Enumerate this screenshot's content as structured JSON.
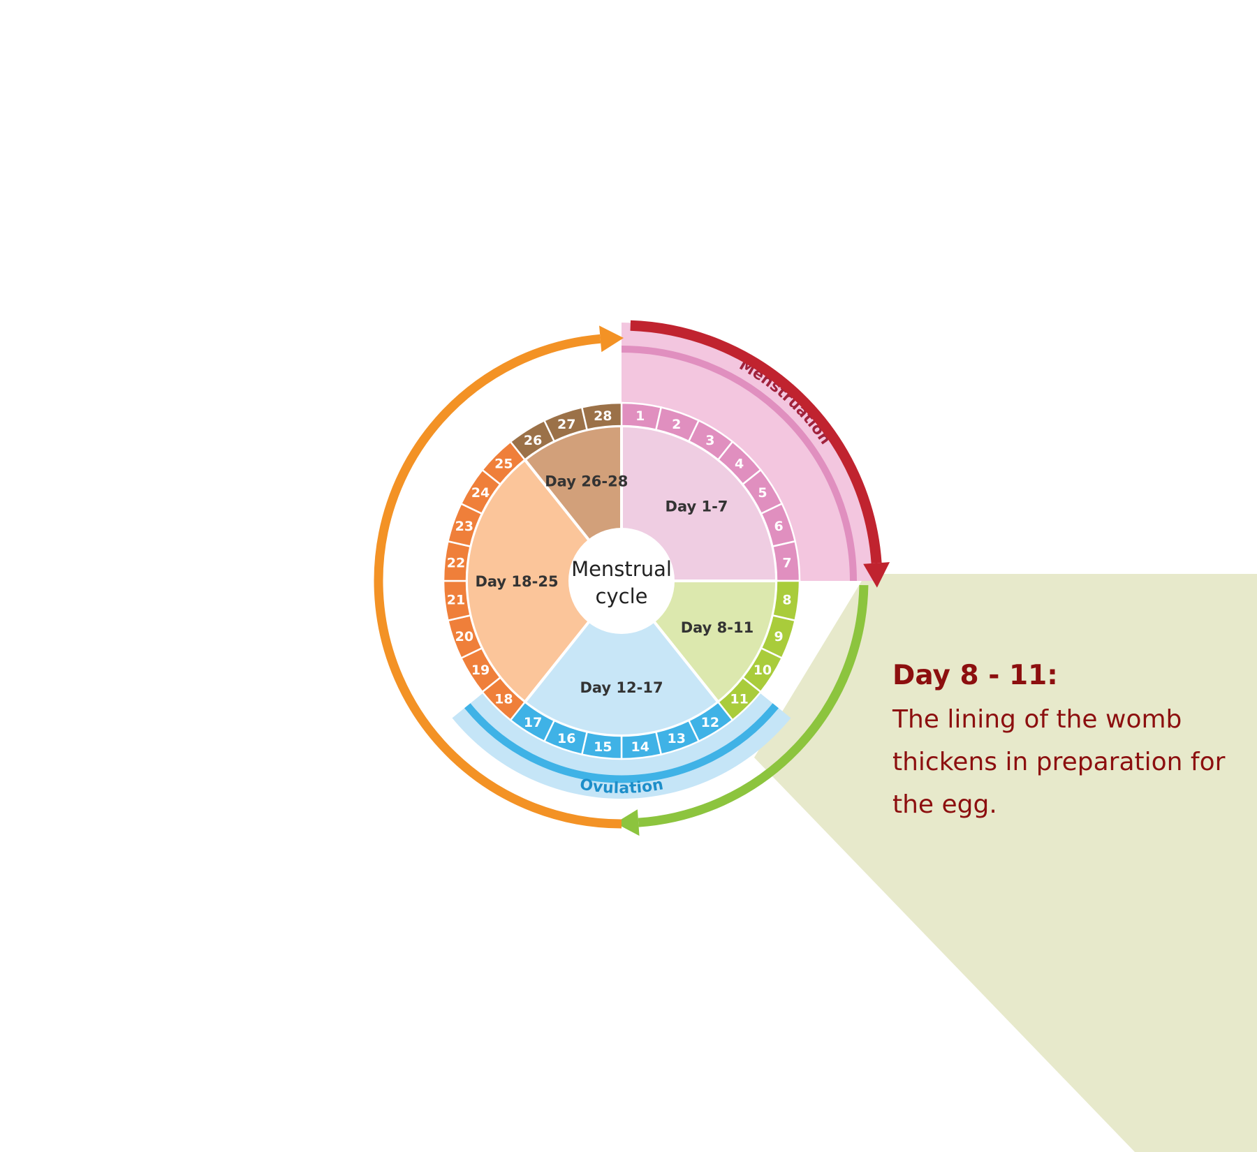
{
  "diagram": {
    "center_label_line1": "Menstrual",
    "center_label_line2": "cycle",
    "days": [
      "1",
      "2",
      "3",
      "4",
      "5",
      "6",
      "7",
      "8",
      "9",
      "10",
      "11",
      "12",
      "13",
      "14",
      "15",
      "16",
      "17",
      "18",
      "19",
      "20",
      "21",
      "22",
      "23",
      "24",
      "25",
      "26",
      "27",
      "28"
    ],
    "phases": [
      {
        "label": "Day 1-7",
        "from_day": 1,
        "to_day": 7,
        "fill": "#efcde2",
        "ring": "#e08fbf"
      },
      {
        "label": "Day 8-11",
        "from_day": 8,
        "to_day": 11,
        "fill": "#dce8ae",
        "ring": "#a9cc3b"
      },
      {
        "label": "Day 12-17",
        "from_day": 12,
        "to_day": 17,
        "fill": "#c8e6f7",
        "ring": "#3fb2e6"
      },
      {
        "label": "Day 18-25",
        "from_day": 18,
        "to_day": 25,
        "fill": "#fbc59a",
        "ring": "#ef7f3a"
      },
      {
        "label": "Day 26-28",
        "from_day": 26,
        "to_day": 28,
        "fill": "#d2a07a",
        "ring": "#9b7148"
      }
    ],
    "menstruation_label": "Menstruation",
    "ovulation_label": "Ovulation",
    "colors": {
      "menstruation_arrow": "#c0232f",
      "green_arrow": "#8cc43e",
      "orange_arrow": "#f39225",
      "menstruation_band": "#f3c6df",
      "menstruation_stripe": "#e08fbf",
      "menstruation_text": "#a0223c",
      "ovulation_band": "#c5e5f7",
      "ovulation_stripe": "#3fb2e6",
      "ovulation_text": "#1d8ec9",
      "phase_text": "#333333",
      "callout_bg": "#e7e9cb"
    }
  },
  "callout": {
    "title": "Day 8 - 11:",
    "body": "The lining of the womb thickens in preparation for the egg."
  }
}
